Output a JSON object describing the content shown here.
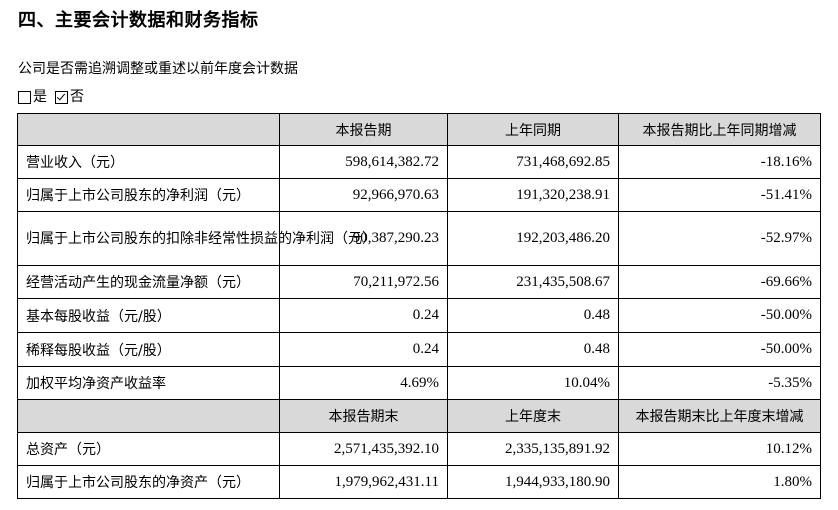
{
  "section_title": "四、主要会计数据和财务指标",
  "question": "公司是否需追溯调整或重述以前年度会计数据",
  "options": {
    "yes_label": "是",
    "no_label": "否",
    "selected": "否"
  },
  "table": {
    "header1": [
      "",
      "本报告期",
      "上年同期",
      "本报告期比上年同期增减"
    ],
    "rows1": [
      {
        "label": "营业收入（元）",
        "current": "598,614,382.72",
        "previous": "731,468,692.85",
        "change": "-18.16%"
      },
      {
        "label": "归属于上市公司股东的净利润（元）",
        "current": "92,966,970.63",
        "previous": "191,320,238.91",
        "change": "-51.41%"
      },
      {
        "label": "归属于上市公司股东的扣除非经常性损益的净利润（元）",
        "current": "90,387,290.23",
        "previous": "192,203,486.20",
        "change": "-52.97%"
      },
      {
        "label": "经营活动产生的现金流量净额（元）",
        "current": "70,211,972.56",
        "previous": "231,435,508.67",
        "change": "-69.66%"
      },
      {
        "label": "基本每股收益（元/股）",
        "current": "0.24",
        "previous": "0.48",
        "change": "-50.00%"
      },
      {
        "label": "稀释每股收益（元/股）",
        "current": "0.24",
        "previous": "0.48",
        "change": "-50.00%"
      },
      {
        "label": "加权平均净资产收益率",
        "current": "4.69%",
        "previous": "10.04%",
        "change": "-5.35%"
      }
    ],
    "header2": [
      "",
      "本报告期末",
      "上年度末",
      "本报告期末比上年度末增减"
    ],
    "rows2": [
      {
        "label": "总资产（元）",
        "current": "2,571,435,392.10",
        "previous": "2,335,135,891.92",
        "change": "10.12%"
      },
      {
        "label": "归属于上市公司股东的净资产（元）",
        "current": "1,979,962,431.11",
        "previous": "1,944,933,180.90",
        "change": "1.80%"
      }
    ]
  }
}
